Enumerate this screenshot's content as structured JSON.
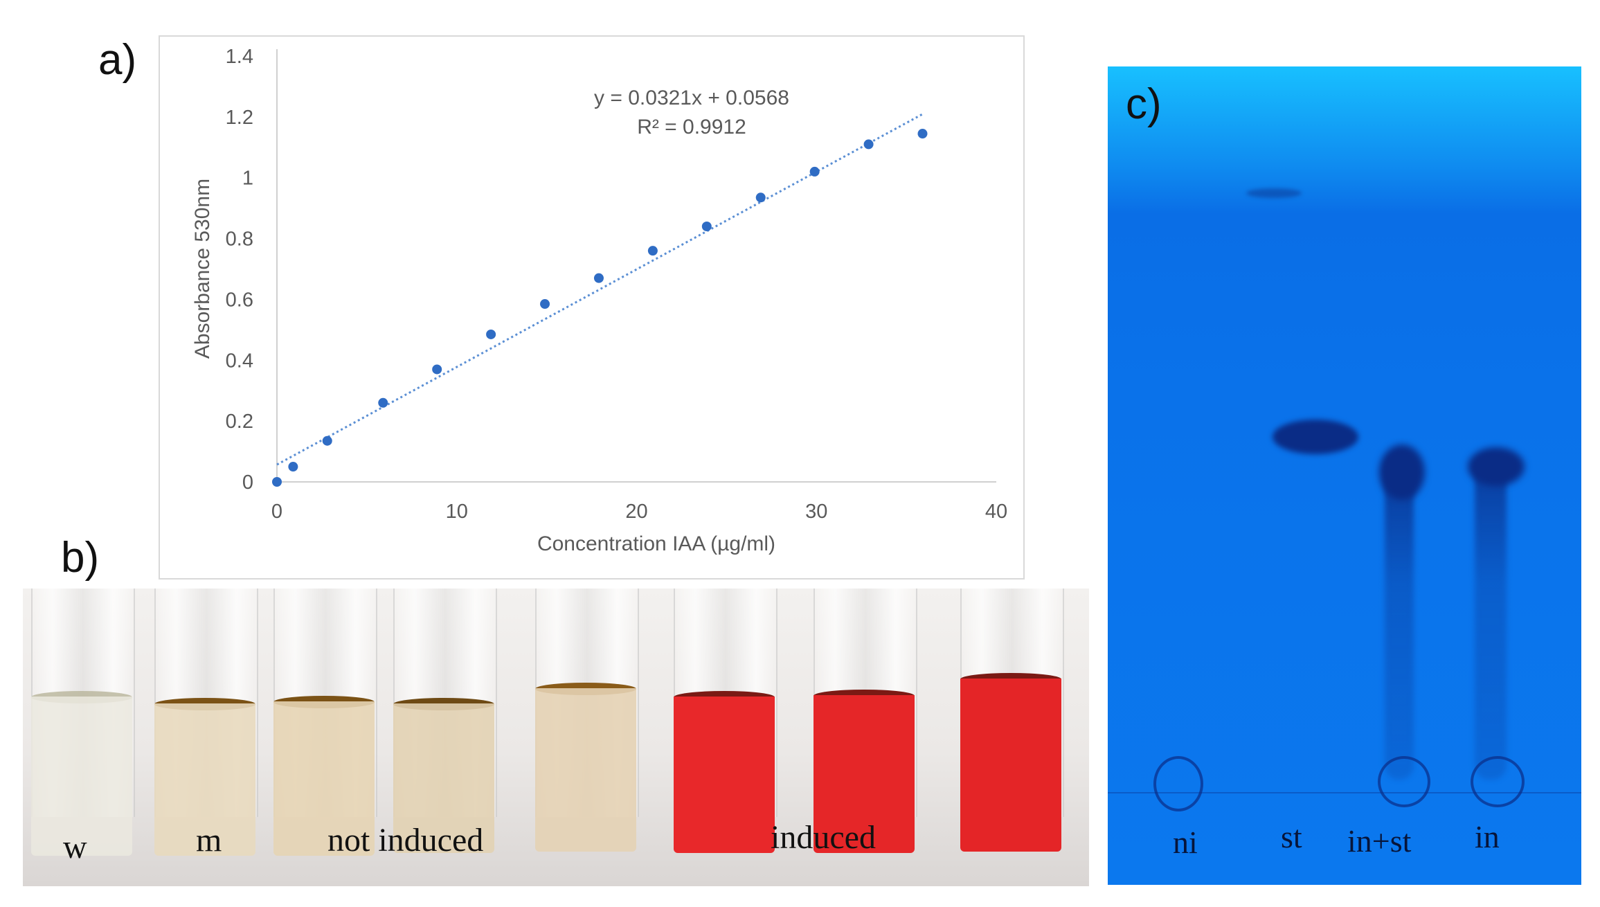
{
  "panels": {
    "a_label": "a)",
    "b_label": "b)",
    "c_label": "c)"
  },
  "chart_data": {
    "type": "scatter",
    "xlabel": "Concentration IAA (µg/ml)",
    "ylabel": "Absorbance 530nm",
    "xlim": [
      0,
      40
    ],
    "ylim": [
      0,
      1.4
    ],
    "x_ticks": [
      "0",
      "10",
      "20",
      "30",
      "40"
    ],
    "y_ticks": [
      "0",
      "0.2",
      "0.4",
      "0.6",
      "0.8",
      "1",
      "1.2",
      "1.4"
    ],
    "x_tick_values": [
      0,
      10,
      20,
      30,
      40
    ],
    "y_tick_values": [
      0,
      0.2,
      0.4,
      0.6,
      0.8,
      1.0,
      1.2,
      1.4
    ],
    "grid": false,
    "series": [
      {
        "x": [
          0,
          0.9,
          2.8,
          5.9,
          8.9,
          11.9,
          14.9,
          17.9,
          20.9,
          23.9,
          26.9,
          29.9,
          32.9,
          35.9
        ],
        "y": [
          0.0,
          0.05,
          0.135,
          0.26,
          0.37,
          0.485,
          0.585,
          0.67,
          0.76,
          0.84,
          0.935,
          1.02,
          1.11,
          1.145
        ]
      }
    ],
    "trendline": {
      "slope": 0.0321,
      "intercept": 0.0568,
      "x_range": [
        0,
        35.9
      ],
      "equation": "y = 0.0321x + 0.0568",
      "r_squared": "R² = 0.9912"
    },
    "colors": {
      "points": "#2f6cc4",
      "trendline": "#5b8fd4",
      "axis": "#d0d0d0",
      "text": "#595959"
    }
  },
  "tubes": {
    "labels": {
      "w": "w",
      "m": "m",
      "not_induced": "not induced",
      "induced": "induced"
    },
    "colors": {
      "water": "#ebe9df",
      "medium": "#e8d9be",
      "not_induced": "#e6d4b4",
      "induced": "#e8282a"
    }
  },
  "tlc": {
    "lanes": {
      "ni": "ni",
      "st": "st",
      "in_st": "in+st",
      "in": "in"
    },
    "colors": {
      "plate": "#0b72ea",
      "spot": "#0a2c86"
    }
  }
}
